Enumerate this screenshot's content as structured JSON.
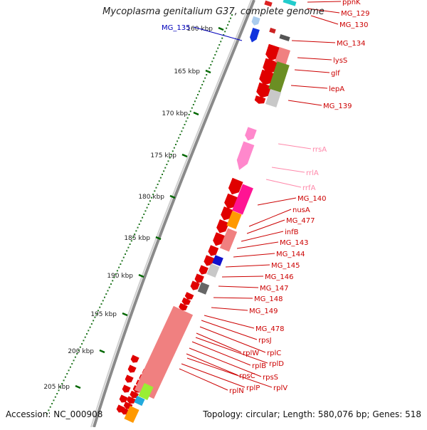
{
  "title": "Mycoplasma genitalium G37, complete genome",
  "footer": {
    "accession": "Accession: NC_000908",
    "topology": "Topology: circular; Length: 580,076 bp; Genes: 518"
  },
  "scale_ticks": [
    "160 kbp",
    "165 kbp",
    "170 kbp",
    "175 kbp",
    "180 kbp",
    "185 kbp",
    "190 kbp",
    "195 kbp",
    "200 kbp",
    "205 kbp"
  ],
  "genes": [
    {
      "name": "ppnK",
      "color": "#cc0000"
    },
    {
      "name": "MG_129",
      "color": "#cc0000"
    },
    {
      "name": "MG_130",
      "color": "#cc0000"
    },
    {
      "name": "MG_135",
      "color": "#0000bb"
    },
    {
      "name": "MG_134",
      "color": "#cc0000"
    },
    {
      "name": "lysS",
      "color": "#cc0000"
    },
    {
      "name": "glf",
      "color": "#cc0000"
    },
    {
      "name": "lepA",
      "color": "#cc0000"
    },
    {
      "name": "MG_139",
      "color": "#cc0000"
    },
    {
      "name": "rrsA",
      "color": "#ff88aa"
    },
    {
      "name": "rrlA",
      "color": "#ff88aa"
    },
    {
      "name": "rrfA",
      "color": "#ff88aa"
    },
    {
      "name": "MG_140",
      "color": "#cc0000"
    },
    {
      "name": "nusA",
      "color": "#cc0000"
    },
    {
      "name": "MG_477",
      "color": "#cc0000"
    },
    {
      "name": "infB",
      "color": "#cc0000"
    },
    {
      "name": "MG_143",
      "color": "#cc0000"
    },
    {
      "name": "MG_144",
      "color": "#cc0000"
    },
    {
      "name": "MG_145",
      "color": "#cc0000"
    },
    {
      "name": "MG_146",
      "color": "#cc0000"
    },
    {
      "name": "MG_147",
      "color": "#cc0000"
    },
    {
      "name": "MG_148",
      "color": "#cc0000"
    },
    {
      "name": "MG_149",
      "color": "#cc0000"
    },
    {
      "name": "MG_478",
      "color": "#cc0000"
    },
    {
      "name": "rpsJ",
      "color": "#cc0000"
    },
    {
      "name": "rplC",
      "color": "#cc0000"
    },
    {
      "name": "rplW",
      "color": "#cc0000"
    },
    {
      "name": "rplD",
      "color": "#cc0000"
    },
    {
      "name": "rplB",
      "color": "#cc0000"
    },
    {
      "name": "rpsS",
      "color": "#cc0000"
    },
    {
      "name": "rpsC",
      "color": "#cc0000"
    },
    {
      "name": "rplV",
      "color": "#cc0000"
    },
    {
      "name": "rplP",
      "color": "#cc0000"
    },
    {
      "name": "rplN",
      "color": "#cc0000"
    }
  ],
  "colors": {
    "forward_strand": "#e00000",
    "backbone": "#888888",
    "tick_marks": "#006600",
    "cog_translation": "#f08080",
    "cog_transcription": "#ff1493",
    "cog_energy": "#6b8e23",
    "cog_unknown": "#c8c8c8",
    "rrna": "#ff88cc"
  }
}
